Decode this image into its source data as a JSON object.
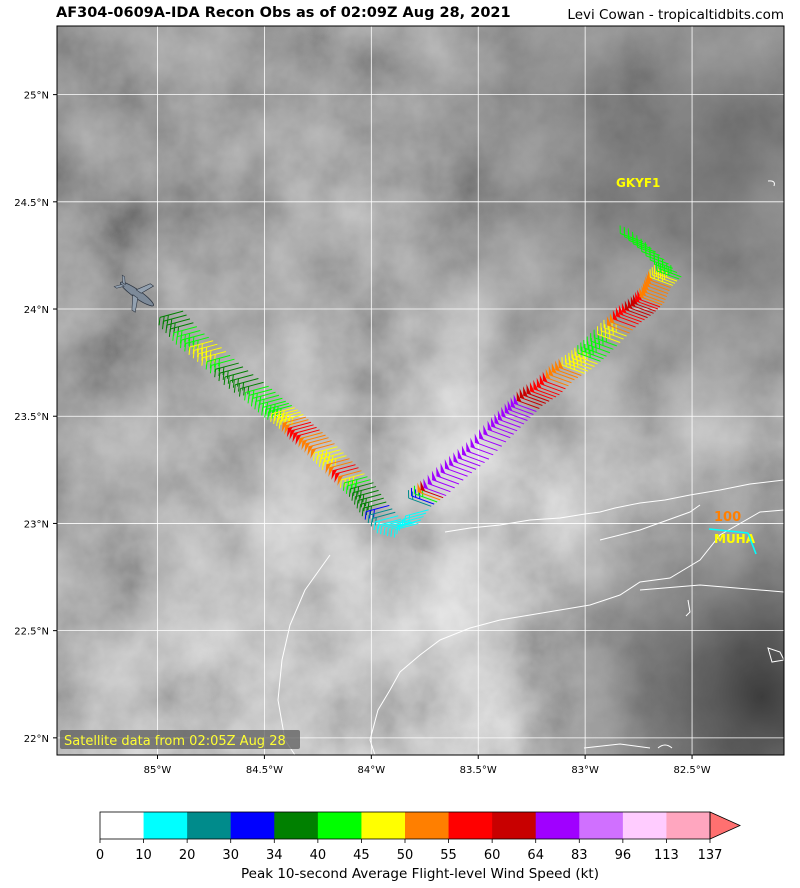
{
  "title": "AF304-0609A-IDA Recon Obs as of 02:09Z Aug 28, 2021",
  "credit": "Levi Cowan - tropicaltidbits.com",
  "map": {
    "lon_labels": [
      "85°W",
      "84.5°W",
      "84°W",
      "83.5°W",
      "83°W",
      "82.5°W"
    ],
    "lat_labels": [
      "25°N",
      "24.5°N",
      "24°N",
      "23.5°N",
      "23°N",
      "22.5°N",
      "22°N"
    ],
    "satellite_note": "Satellite data from 02:05Z Aug 28",
    "stations": [
      {
        "id": "GKYF1",
        "color": "#ffff00"
      },
      {
        "id": "MUHA",
        "color": "#ffff00"
      },
      {
        "value": "100",
        "color": "#ff7f00"
      }
    ]
  },
  "colorbar": {
    "title": "Peak 10-second Average Flight-level Wind Speed (kt)",
    "ticks": [
      "0",
      "10",
      "20",
      "30",
      "34",
      "40",
      "45",
      "50",
      "55",
      "60",
      "64",
      "83",
      "96",
      "113",
      "137"
    ],
    "colors": [
      "#ffffff",
      "#00ffff",
      "#008b8b",
      "#0000ff",
      "#008000",
      "#00ff00",
      "#ffff00",
      "#ff7f00",
      "#ff0000",
      "#c80000",
      "#a000ff",
      "#d070ff",
      "#ffccff",
      "#ffa6bf",
      "#ff7070"
    ]
  },
  "chart_data": {
    "type": "map",
    "title": "AF304-0609A-IDA Recon Obs as of 02:09Z Aug 28, 2021",
    "lon_range": [
      -85.47,
      -82.07
    ],
    "lat_range": [
      21.92,
      25.32
    ],
    "flight_track": [
      {
        "lon": -84.88,
        "lat": 23.99,
        "wind_kt": 36
      },
      {
        "lon": -84.8,
        "lat": 23.9,
        "wind_kt": 42
      },
      {
        "lon": -84.7,
        "lat": 23.82,
        "wind_kt": 47
      },
      {
        "lon": -84.6,
        "lat": 23.73,
        "wind_kt": 37
      },
      {
        "lon": -84.48,
        "lat": 23.64,
        "wind_kt": 40
      },
      {
        "lon": -84.4,
        "lat": 23.57,
        "wind_kt": 42
      },
      {
        "lon": -84.33,
        "lat": 23.52,
        "wind_kt": 47
      },
      {
        "lon": -84.27,
        "lat": 23.46,
        "wind_kt": 58
      },
      {
        "lon": -84.2,
        "lat": 23.4,
        "wind_kt": 52
      },
      {
        "lon": -84.13,
        "lat": 23.33,
        "wind_kt": 48
      },
      {
        "lon": -84.06,
        "lat": 23.26,
        "wind_kt": 57
      },
      {
        "lon": -83.99,
        "lat": 23.19,
        "wind_kt": 36
      },
      {
        "lon": -83.93,
        "lat": 23.1,
        "wind_kt": 35
      },
      {
        "lon": -83.86,
        "lat": 23.02,
        "wind_kt": 15
      },
      {
        "lon": -83.78,
        "lat": 23.0,
        "wind_kt": 12
      },
      {
        "lon": -83.72,
        "lat": 23.08,
        "wind_kt": 20
      },
      {
        "lon": -83.65,
        "lat": 23.13,
        "wind_kt": 70
      },
      {
        "lon": -83.55,
        "lat": 23.22,
        "wind_kt": 75
      },
      {
        "lon": -83.45,
        "lat": 23.3,
        "wind_kt": 78
      },
      {
        "lon": -83.35,
        "lat": 23.4,
        "wind_kt": 80
      },
      {
        "lon": -83.27,
        "lat": 23.48,
        "wind_kt": 70
      },
      {
        "lon": -83.2,
        "lat": 23.55,
        "wind_kt": 62
      },
      {
        "lon": -83.12,
        "lat": 23.6,
        "wind_kt": 58
      },
      {
        "lon": -83.05,
        "lat": 23.67,
        "wind_kt": 52
      },
      {
        "lon": -82.97,
        "lat": 23.72,
        "wind_kt": 47
      },
      {
        "lon": -82.9,
        "lat": 23.78,
        "wind_kt": 43
      },
      {
        "lon": -82.82,
        "lat": 23.86,
        "wind_kt": 46
      },
      {
        "lon": -82.75,
        "lat": 23.93,
        "wind_kt": 58
      },
      {
        "lon": -82.68,
        "lat": 23.98,
        "wind_kt": 62
      },
      {
        "lon": -82.63,
        "lat": 24.03,
        "wind_kt": 52
      },
      {
        "lon": -82.6,
        "lat": 24.1,
        "wind_kt": 50
      },
      {
        "lon": -82.55,
        "lat": 24.15,
        "wind_kt": 42
      },
      {
        "lon": -82.65,
        "lat": 24.25,
        "wind_kt": 41
      },
      {
        "lon": -82.75,
        "lat": 24.33,
        "wind_kt": 40
      }
    ],
    "aircraft_position": {
      "lon": -85.1,
      "lat": 24.08
    },
    "stations": [
      {
        "id": "GKYF1",
        "lon": -82.85,
        "lat": 24.57
      },
      {
        "id": "MUHA",
        "lon": -82.37,
        "lat": 22.98,
        "value": "100"
      }
    ]
  }
}
